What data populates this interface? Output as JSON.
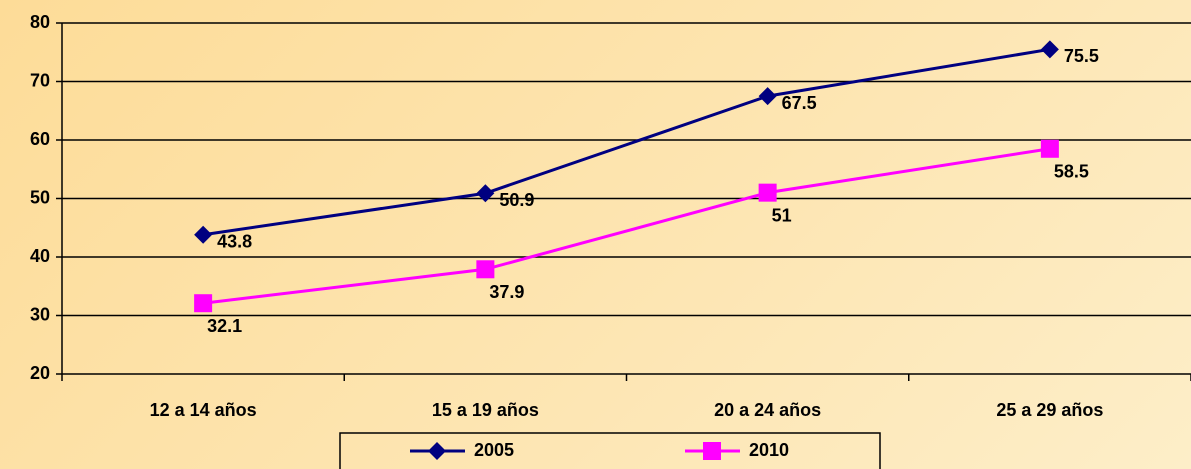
{
  "chart_data": {
    "type": "line",
    "categories": [
      "12 a 14 años",
      "15 a 19 años",
      "20 a 24 años",
      "25 a 29 años"
    ],
    "series": [
      {
        "name": "2005",
        "color": "#000080",
        "marker": "diamond",
        "values": [
          43.8,
          50.9,
          67.5,
          75.5
        ]
      },
      {
        "name": "2010",
        "color": "#ff00ff",
        "marker": "square",
        "values": [
          32.1,
          37.9,
          51,
          58.5
        ]
      }
    ],
    "ylim": [
      20,
      80
    ],
    "yticks": [
      20,
      30,
      40,
      50,
      60,
      70,
      80
    ],
    "grid": true,
    "legend": "bottom"
  }
}
